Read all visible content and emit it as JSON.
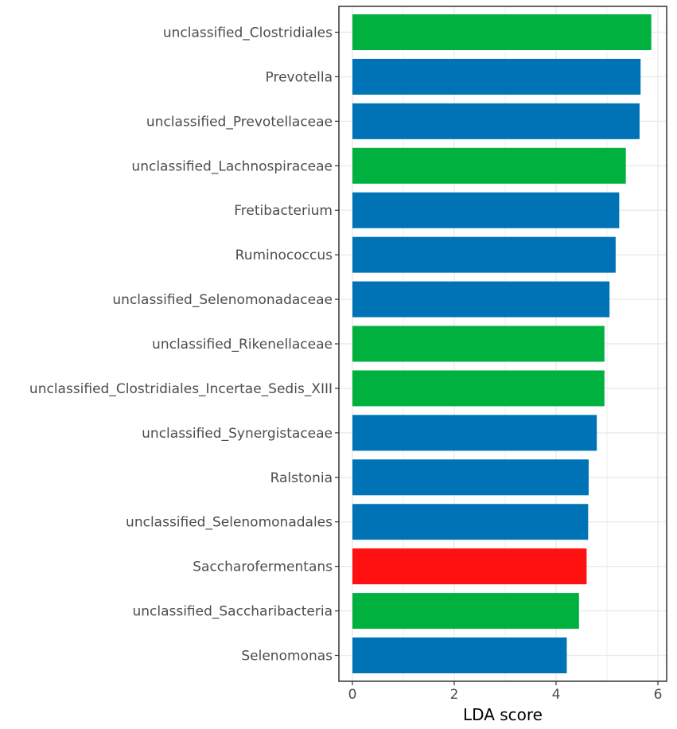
{
  "chart_data": {
    "type": "bar",
    "orientation": "horizontal",
    "title": "",
    "xlabel": "LDA score",
    "ylabel": "",
    "xlim": [
      -0.5,
      6.15
    ],
    "xticks": [
      0,
      2,
      4,
      6
    ],
    "grid": true,
    "legend": "none",
    "categories": [
      "unclassified_Clostridiales",
      "Prevotella",
      "unclassified_Prevotellaceae",
      "unclassified_Lachnospiraceae",
      "Fretibacterium",
      "Ruminococcus",
      "unclassified_Selenomonadaceae",
      "unclassified_Rikenellaceae",
      "unclassified_Clostridiales_Incertae_Sedis_XIII",
      "unclassified_Synergistaceae",
      "Ralstonia",
      "unclassified_Selenomonadales",
      "Saccharofermentans",
      "unclassified_Saccharibacteria",
      "Selenomonas"
    ],
    "values": [
      5.87,
      5.66,
      5.64,
      5.37,
      5.24,
      5.17,
      5.05,
      4.95,
      4.95,
      4.8,
      4.64,
      4.63,
      4.6,
      4.45,
      4.21
    ],
    "bar_colors": [
      "#00b140",
      "#0073b7",
      "#0073b7",
      "#00b140",
      "#0073b7",
      "#0073b7",
      "#0073b7",
      "#00b140",
      "#00b140",
      "#0073b7",
      "#0073b7",
      "#0073b7",
      "#ff1111",
      "#00b140",
      "#0073b7"
    ],
    "colors": {
      "green": "#00b140",
      "blue": "#0073b7",
      "red": "#ff1111",
      "grid": "#ebebeb",
      "panel_border": "#333333"
    }
  }
}
